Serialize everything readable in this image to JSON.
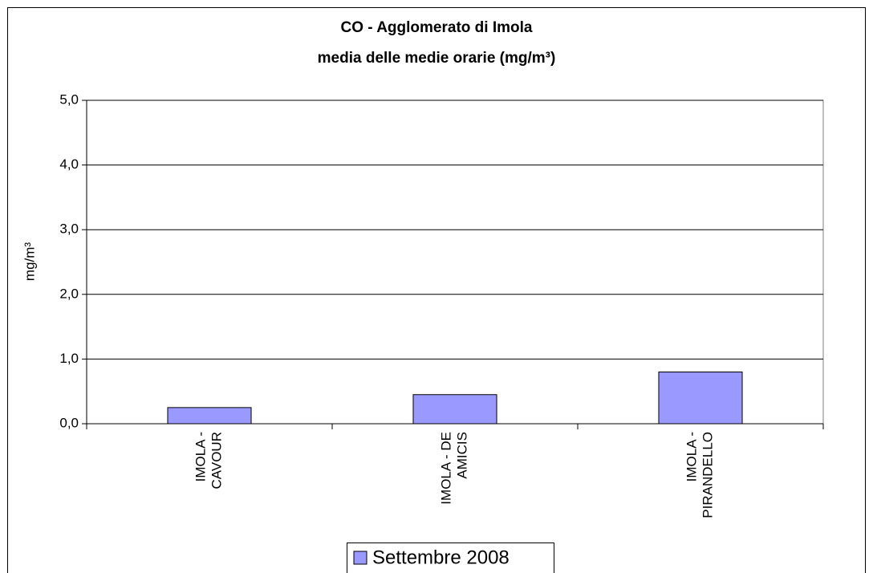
{
  "chart_data": {
    "type": "bar",
    "title": [
      "CO - Agglomerato di Imola",
      "media delle medie orarie  (mg/m³)"
    ],
    "y_label": "mg/m³",
    "categories": [
      [
        "IMOLA -",
        "CAVOUR"
      ],
      [
        "IMOLA - DE",
        "AMICIS"
      ],
      [
        "IMOLA -",
        "PIRANDELLO"
      ]
    ],
    "series": [
      {
        "name": "Settembre 2008",
        "color": "#9999ff",
        "values": [
          0.25,
          0.45,
          0.8
        ]
      }
    ],
    "ylim": [
      0,
      5
    ],
    "yticks": [
      {
        "value": 0,
        "label": "0,0"
      },
      {
        "value": 1,
        "label": "1,0"
      },
      {
        "value": 2,
        "label": "2,0"
      },
      {
        "value": 3,
        "label": "3,0"
      },
      {
        "value": 4,
        "label": "4,0"
      },
      {
        "value": 5,
        "label": "5,0"
      }
    ],
    "grid": true
  }
}
